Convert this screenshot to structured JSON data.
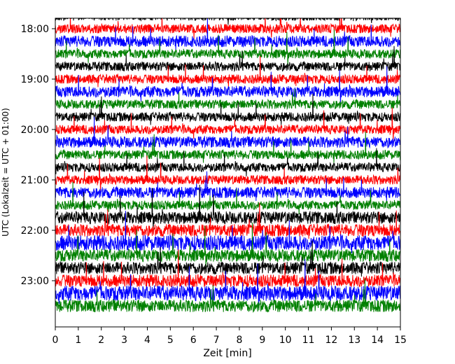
{
  "chart_data": {
    "type": "line",
    "title": "",
    "xlabel": "Zeit  [min]",
    "ylabel": "UTC (Lokalzeit = UTC + 01:00)",
    "xlim": [
      0,
      15
    ],
    "x_ticks": [
      0,
      1,
      2,
      3,
      4,
      5,
      6,
      7,
      8,
      9,
      10,
      11,
      12,
      13,
      14,
      15
    ],
    "y_ticks": [
      "18:00",
      "19:00",
      "20:00",
      "21:00",
      "22:00",
      "23:00"
    ],
    "start_time": "17:45",
    "trace_interval_min": 15,
    "trace_count": 24,
    "grid": false,
    "colors": [
      "#000000",
      "#ff0000",
      "#0000ff",
      "#008000"
    ],
    "series_description": "seismogram helicorder: one 15-minute trace per row, colors cycle black, red, blue, green"
  }
}
